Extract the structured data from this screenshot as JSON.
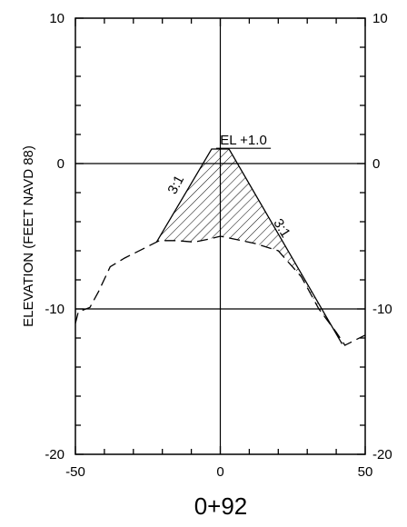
{
  "chart_data": {
    "type": "line",
    "title": "0+92",
    "ylabel": "ELEVATION (FEET NAVD 88)",
    "xlabel": "",
    "xlim": [
      -50,
      50
    ],
    "ylim": [
      -20,
      10
    ],
    "x_ticks": [
      -50,
      0,
      50
    ],
    "y_ticks": [
      -20,
      -10,
      0,
      10
    ],
    "x_tick_labels": [
      "-50",
      "0",
      "50"
    ],
    "y_tick_labels": [
      "-20",
      "-10",
      "0",
      "10"
    ],
    "gridlines_x": [
      0
    ],
    "gridlines_y": [
      0,
      -10
    ],
    "series": [
      {
        "style": "dashed",
        "x": [
          -50,
          -49,
          -45,
          -42,
          -38,
          -33,
          -27,
          -21,
          -15,
          -9,
          -4,
          0,
          5,
          12,
          20,
          28,
          34,
          40,
          43,
          47,
          50
        ],
        "y": [
          -11,
          -10.2,
          -9.9,
          -8.8,
          -7.1,
          -6.5,
          -5.9,
          -5.3,
          -5.3,
          -5.4,
          -5.2,
          -5.0,
          -5.2,
          -5.5,
          -6.0,
          -7.8,
          -10.0,
          -11.6,
          -12.5,
          -12.1,
          -11.8
        ]
      },
      {
        "style": "solid",
        "x": [
          -22,
          -3,
          3,
          42
        ],
        "y": [
          -5.4,
          1.0,
          1.0,
          -12.4
        ]
      }
    ],
    "annotations": [
      {
        "text": "EL +1.0",
        "underline": true,
        "x": 8,
        "y": 1.3
      },
      {
        "text": "3:1",
        "x": -14,
        "y": -1.6,
        "rotation": -62
      },
      {
        "text": "3:1",
        "x": 20,
        "y": -4.6,
        "rotation": 58
      }
    ]
  }
}
